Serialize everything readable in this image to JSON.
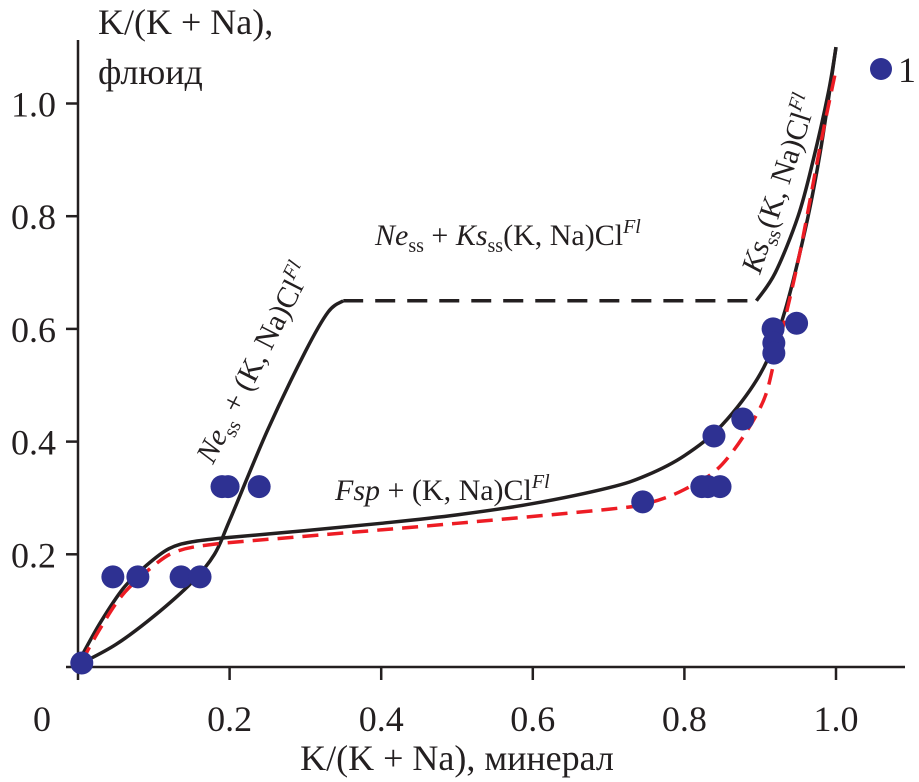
{
  "chart_data": {
    "type": "scatter",
    "xlabel": "K/(K + Na), минерал",
    "ylabel_line1": "K/(K + Na),",
    "ylabel_line2": "флюид",
    "xlim": [
      0,
      1.0
    ],
    "ylim": [
      0,
      1.1
    ],
    "x_ticks": [
      "0",
      "0.2",
      "0.4",
      "0.6",
      "0.8",
      "1.0"
    ],
    "x_tick_values": [
      0,
      0.2,
      0.4,
      0.6,
      0.8,
      1.0
    ],
    "y_ticks": [
      "0.2",
      "0.4",
      "0.6",
      "0.8",
      "1.0"
    ],
    "y_tick_values": [
      0.2,
      0.4,
      0.6,
      0.8,
      1.0
    ],
    "grid": false,
    "legend": {
      "position": "top-right",
      "label": "1"
    },
    "colors": {
      "points": "#2e3192",
      "curve": "#231f20",
      "model": "#ed1c24"
    },
    "points": [
      [
        0.005,
        0.007
      ],
      [
        0.046,
        0.16
      ],
      [
        0.079,
        0.16
      ],
      [
        0.136,
        0.16
      ],
      [
        0.161,
        0.16
      ],
      [
        0.19,
        0.32
      ],
      [
        0.198,
        0.32
      ],
      [
        0.239,
        0.32
      ],
      [
        0.745,
        0.293
      ],
      [
        0.823,
        0.32
      ],
      [
        0.831,
        0.32
      ],
      [
        0.847,
        0.32
      ],
      [
        0.839,
        0.41
      ],
      [
        0.877,
        0.44
      ],
      [
        0.917,
        0.6
      ],
      [
        0.918,
        0.575
      ],
      [
        0.918,
        0.557
      ],
      [
        0.948,
        0.61
      ]
    ],
    "lines": [
      {
        "name": "fsp-boundary",
        "style": "solid",
        "points": [
          [
            0.005,
            0.02
          ],
          [
            0.03,
            0.08
          ],
          [
            0.06,
            0.14
          ],
          [
            0.09,
            0.18
          ],
          [
            0.12,
            0.21
          ],
          [
            0.15,
            0.222
          ],
          [
            0.2,
            0.23
          ],
          [
            0.3,
            0.242
          ],
          [
            0.4,
            0.255
          ],
          [
            0.5,
            0.27
          ],
          [
            0.6,
            0.29
          ],
          [
            0.7,
            0.318
          ],
          [
            0.75,
            0.34
          ],
          [
            0.8,
            0.375
          ],
          [
            0.85,
            0.43
          ],
          [
            0.9,
            0.52
          ],
          [
            0.93,
            0.62
          ],
          [
            0.96,
            0.78
          ],
          [
            0.98,
            0.92
          ],
          [
            1.0,
            1.1
          ]
        ]
      },
      {
        "name": "ne-boundary",
        "style": "solid",
        "points": [
          [
            0.005,
            0.007
          ],
          [
            0.05,
            0.04
          ],
          [
            0.1,
            0.09
          ],
          [
            0.15,
            0.15
          ],
          [
            0.18,
            0.2
          ],
          [
            0.2,
            0.26
          ],
          [
            0.25,
            0.42
          ],
          [
            0.3,
            0.56
          ],
          [
            0.33,
            0.63
          ],
          [
            0.35,
            0.65
          ]
        ]
      },
      {
        "name": "ne-ks-boundary",
        "style": "dashed",
        "points": [
          [
            0.35,
            0.65
          ],
          [
            0.895,
            0.65
          ]
        ]
      },
      {
        "name": "ks-boundary",
        "style": "solid",
        "points": [
          [
            0.895,
            0.65
          ],
          [
            0.92,
            0.7
          ],
          [
            0.95,
            0.8
          ],
          [
            0.97,
            0.9
          ],
          [
            0.99,
            1.02
          ],
          [
            1.0,
            1.1
          ]
        ]
      },
      {
        "name": "model-curve",
        "style": "red-dashed",
        "points": [
          [
            0.005,
            0.01
          ],
          [
            0.03,
            0.07
          ],
          [
            0.06,
            0.13
          ],
          [
            0.1,
            0.18
          ],
          [
            0.13,
            0.205
          ],
          [
            0.18,
            0.218
          ],
          [
            0.3,
            0.232
          ],
          [
            0.5,
            0.255
          ],
          [
            0.7,
            0.28
          ],
          [
            0.75,
            0.29
          ],
          [
            0.8,
            0.315
          ],
          [
            0.85,
            0.36
          ],
          [
            0.9,
            0.46
          ],
          [
            0.92,
            0.55
          ],
          [
            0.95,
            0.72
          ],
          [
            0.98,
            0.93
          ],
          [
            1.0,
            1.06
          ]
        ]
      }
    ],
    "annotations": {
      "ne_fl": {
        "a": "Ne",
        "b": "ss",
        "c": " + (K, Na)Cl",
        "d": "Fl"
      },
      "ne_ks_fl": {
        "a": "Ne",
        "b": "ss",
        "c": " + ",
        "e": "Ks",
        "f": "ss",
        "g": "(K, Na)Cl",
        "d": "Fl"
      },
      "fsp_fl": {
        "a": "Fsp",
        "c": " + (K, Na)Cl",
        "d": "Fl"
      },
      "ks_fl": {
        "a": "Ks",
        "b": "ss",
        "c": "(K, Na)Cl",
        "d": "Fl"
      }
    }
  }
}
